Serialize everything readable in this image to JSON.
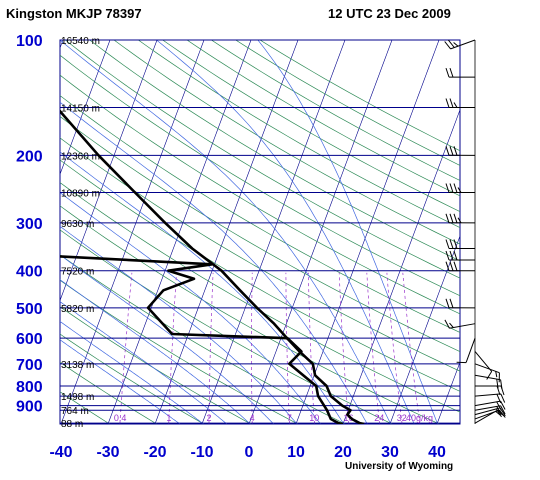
{
  "header": {
    "station": "Kingston MKJP 78397",
    "timestamp": "12 UTC 23 Dec 2009"
  },
  "credit": "University of Wyoming",
  "colors": {
    "isotherm": "#00008b",
    "isobar": "#00008b",
    "dry_adiabat": "#2e8b57",
    "moist_adiabat": "#4169e1",
    "mixing_ratio": "#9932cc",
    "pressure_label": "#0000cd",
    "temperature_label": "#0000cd",
    "mixing_ratio_label": "#9932cc",
    "sounding": "#000000"
  },
  "chart_data": {
    "type": "line",
    "title": "Kingston MKJP 78397",
    "subtitle": "12 UTC 23 Dec 2009",
    "xlabel": "",
    "ylabel": "",
    "x_axis": {
      "ticks": [
        -40,
        -30,
        -20,
        -10,
        0,
        10,
        20,
        30,
        40
      ],
      "range": [
        -40,
        45
      ]
    },
    "y_axis": {
      "scale": "log",
      "inverted": true,
      "range": [
        1005,
        100
      ],
      "ticks": [
        100,
        200,
        300,
        400,
        500,
        600,
        700,
        800,
        900
      ]
    },
    "height_labels": [
      {
        "p": 100,
        "label": "16540 m"
      },
      {
        "p": 150,
        "label": "14150 m"
      },
      {
        "p": 200,
        "label": "12360 m"
      },
      {
        "p": 250,
        "label": "10890 m"
      },
      {
        "p": 300,
        "label": "9630 m"
      },
      {
        "p": 400,
        "label": "7520 m"
      },
      {
        "p": 500,
        "label": "5820 m"
      },
      {
        "p": 700,
        "label": "3138 m"
      },
      {
        "p": 850,
        "label": "1498 m"
      },
      {
        "p": 925,
        "label": "764 m"
      },
      {
        "p": 1000,
        "label": "88 m"
      }
    ],
    "mixing_ratio_labels": [
      "0.4",
      "1",
      "2",
      "4",
      "7",
      "10",
      "16",
      "24",
      "32",
      "40g/kg"
    ],
    "mixing_ratio_values": [
      0.4,
      1,
      2,
      4,
      7,
      10,
      16,
      24,
      32,
      40
    ],
    "series": [
      {
        "name": "",
        "kind": "temperature",
        "points": [
          {
            "p": 1005,
            "t": 24.5
          },
          {
            "p": 1000,
            "t": 23.5
          },
          {
            "p": 975,
            "t": 21.5
          },
          {
            "p": 950,
            "t": 20.2
          },
          {
            "p": 925,
            "t": 20.5
          },
          {
            "p": 900,
            "t": 18.4
          },
          {
            "p": 850,
            "t": 15.2
          },
          {
            "p": 800,
            "t": 13.5
          },
          {
            "p": 750,
            "t": 10.2
          },
          {
            "p": 700,
            "t": 8.8
          },
          {
            "p": 650,
            "t": 5.0
          },
          {
            "p": 600,
            "t": 1.3
          },
          {
            "p": 550,
            "t": -2.6
          },
          {
            "p": 500,
            "t": -7.5
          },
          {
            "p": 450,
            "t": -12.5
          },
          {
            "p": 400,
            "t": -18.0
          },
          {
            "p": 350,
            "t": -26.0
          },
          {
            "p": 300,
            "t": -33.8
          },
          {
            "p": 250,
            "t": -42.6
          },
          {
            "p": 200,
            "t": -53.3
          },
          {
            "p": 150,
            "t": -66.0
          },
          {
            "p": 125,
            "t": -75.0
          },
          {
            "p": 100,
            "t": -79.5
          }
        ]
      },
      {
        "name": "",
        "kind": "dewpoint",
        "points": [
          {
            "p": 1005,
            "t": 20.0
          },
          {
            "p": 1000,
            "t": 19.0
          },
          {
            "p": 975,
            "t": 17.0
          },
          {
            "p": 925,
            "t": 15.5
          },
          {
            "p": 850,
            "t": 12.5
          },
          {
            "p": 800,
            "t": 11.3
          },
          {
            "p": 700,
            "t": 3.8
          },
          {
            "p": 650,
            "t": 5.4
          },
          {
            "p": 600,
            "t": 1.4
          },
          {
            "p": 585,
            "t": -23.5
          },
          {
            "p": 500,
            "t": -30.7
          },
          {
            "p": 450,
            "t": -28.8
          },
          {
            "p": 420,
            "t": -23.2
          },
          {
            "p": 400,
            "t": -29.3
          },
          {
            "p": 385,
            "t": -20.5
          },
          {
            "p": 365,
            "t": -57.6
          },
          {
            "p": 300,
            "t": -56.7
          },
          {
            "p": 250,
            "t": -61.9
          },
          {
            "p": 200,
            "t": -70.2
          },
          {
            "p": 150,
            "t": -79.6
          },
          {
            "p": 120,
            "t": -86.0
          },
          {
            "p": 100,
            "t": -86.9
          }
        ]
      }
    ],
    "winds": [
      {
        "p": 1000,
        "dir": 60,
        "spd": 10
      },
      {
        "p": 975,
        "dir": 70,
        "spd": 15
      },
      {
        "p": 950,
        "dir": 75,
        "spd": 20
      },
      {
        "p": 925,
        "dir": 80,
        "spd": 20
      },
      {
        "p": 900,
        "dir": 80,
        "spd": 20
      },
      {
        "p": 850,
        "dir": 85,
        "spd": 20
      },
      {
        "p": 800,
        "dir": 90,
        "spd": 20
      },
      {
        "p": 750,
        "dir": 100,
        "spd": 20
      },
      {
        "p": 700,
        "dir": 110,
        "spd": 15
      },
      {
        "p": 650,
        "dir": 140,
        "spd": 10
      },
      {
        "p": 600,
        "dir": 200,
        "spd": 10
      },
      {
        "p": 550,
        "dir": 260,
        "spd": 15
      },
      {
        "p": 500,
        "dir": 270,
        "spd": 20
      },
      {
        "p": 400,
        "dir": 270,
        "spd": 30
      },
      {
        "p": 375,
        "dir": 270,
        "spd": 30
      },
      {
        "p": 350,
        "dir": 270,
        "spd": 30
      },
      {
        "p": 300,
        "dir": 270,
        "spd": 35
      },
      {
        "p": 250,
        "dir": 270,
        "spd": 35
      },
      {
        "p": 200,
        "dir": 270,
        "spd": 30
      },
      {
        "p": 150,
        "dir": 270,
        "spd": 25
      },
      {
        "p": 125,
        "dir": 270,
        "spd": 20
      },
      {
        "p": 100,
        "dir": 250,
        "spd": 25
      }
    ]
  }
}
